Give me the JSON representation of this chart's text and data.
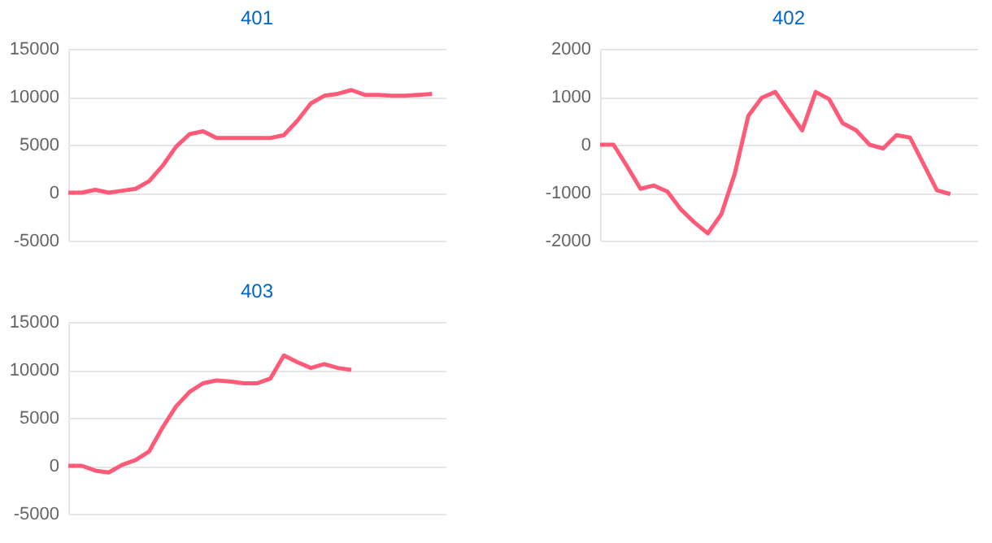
{
  "chart_data": [
    {
      "type": "line",
      "title": "401",
      "categories": [
        null,
        null,
        null,
        null,
        null,
        null,
        null,
        null,
        null,
        null,
        null,
        null,
        null,
        null,
        null,
        null,
        null,
        null,
        null,
        null,
        null,
        null,
        null,
        null,
        null,
        null,
        null,
        null,
        null
      ],
      "values": [
        0,
        0,
        300,
        0,
        200,
        400,
        1200,
        2800,
        4800,
        6100,
        6400,
        5700,
        5700,
        5700,
        5700,
        5700,
        6000,
        7500,
        9300,
        10100,
        10300,
        10700,
        10200,
        10200,
        10100,
        10100,
        10200,
        10300,
        null
      ],
      "color": "#ff5a78",
      "ylim": [
        -5000,
        15000
      ],
      "yticks": [
        -5000,
        0,
        5000,
        10000,
        15000
      ],
      "grid": "y",
      "marker": "none",
      "line_style": "solid"
    },
    {
      "type": "line",
      "title": "402",
      "categories": [
        null,
        null,
        null,
        null,
        null,
        null,
        null,
        null,
        null,
        null,
        null,
        null,
        null,
        null,
        null,
        null,
        null,
        null,
        null,
        null,
        null,
        null,
        null,
        null,
        null,
        null,
        null,
        null,
        null
      ],
      "values": [
        0,
        0,
        -450,
        -920,
        -850,
        -980,
        -1350,
        -1620,
        -1850,
        -1450,
        -600,
        600,
        980,
        1100,
        700,
        300,
        1100,
        950,
        450,
        300,
        0,
        -80,
        200,
        150,
        -400,
        -950,
        -1030,
        null,
        null
      ],
      "color": "#ff5a78",
      "ylim": [
        -2000,
        2000
      ],
      "yticks": [
        -2000,
        -1000,
        0,
        1000,
        2000
      ],
      "grid": "y",
      "marker": "none",
      "line_style": "solid"
    },
    {
      "type": "line",
      "title": "403",
      "categories": [
        null,
        null,
        null,
        null,
        null,
        null,
        null,
        null,
        null,
        null,
        null,
        null,
        null,
        null,
        null,
        null,
        null,
        null,
        null,
        null,
        null,
        null,
        null,
        null,
        null,
        null,
        null,
        null,
        null
      ],
      "values": [
        0,
        0,
        -500,
        -700,
        100,
        600,
        1500,
        4000,
        6200,
        7700,
        8600,
        8900,
        8800,
        8600,
        8600,
        9100,
        11500,
        10800,
        10200,
        10600,
        10200,
        10000,
        null,
        null,
        null,
        null,
        null,
        null,
        null
      ],
      "color": "#ff5a78",
      "ylim": [
        -5000,
        15000
      ],
      "yticks": [
        -5000,
        0,
        5000,
        10000,
        15000
      ],
      "grid": "y",
      "marker": "none",
      "line_style": "solid"
    }
  ]
}
